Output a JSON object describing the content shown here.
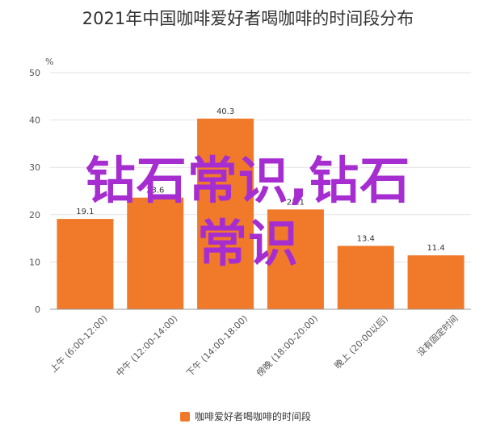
{
  "chart_data": {
    "type": "bar",
    "title": "2021年中国咖啡爱好者喝咖啡的时间段分布",
    "ylabel": "%",
    "xlabel": "",
    "ylim": [
      0,
      50
    ],
    "yticks": [
      0,
      10,
      20,
      30,
      40,
      50
    ],
    "grid": true,
    "legend_position": "bottom",
    "categories": [
      "上午 (6:00-12:00)",
      "中午 (12:00-14:00)",
      "下午 (14:00-18:00)",
      "傍晚 (18:00-20:00)",
      "晚上 (20:00以后)",
      "没有固定时间"
    ],
    "series": [
      {
        "name": "咖啡爱好者喝咖啡的时间段",
        "color": "#f07a2a",
        "values": [
          19.1,
          23.6,
          40.3,
          21.1,
          13.4,
          11.4
        ]
      }
    ]
  },
  "watermark": {
    "line1": "钻石常识,钻石",
    "line2": "常识",
    "color": "#a62ed1"
  }
}
